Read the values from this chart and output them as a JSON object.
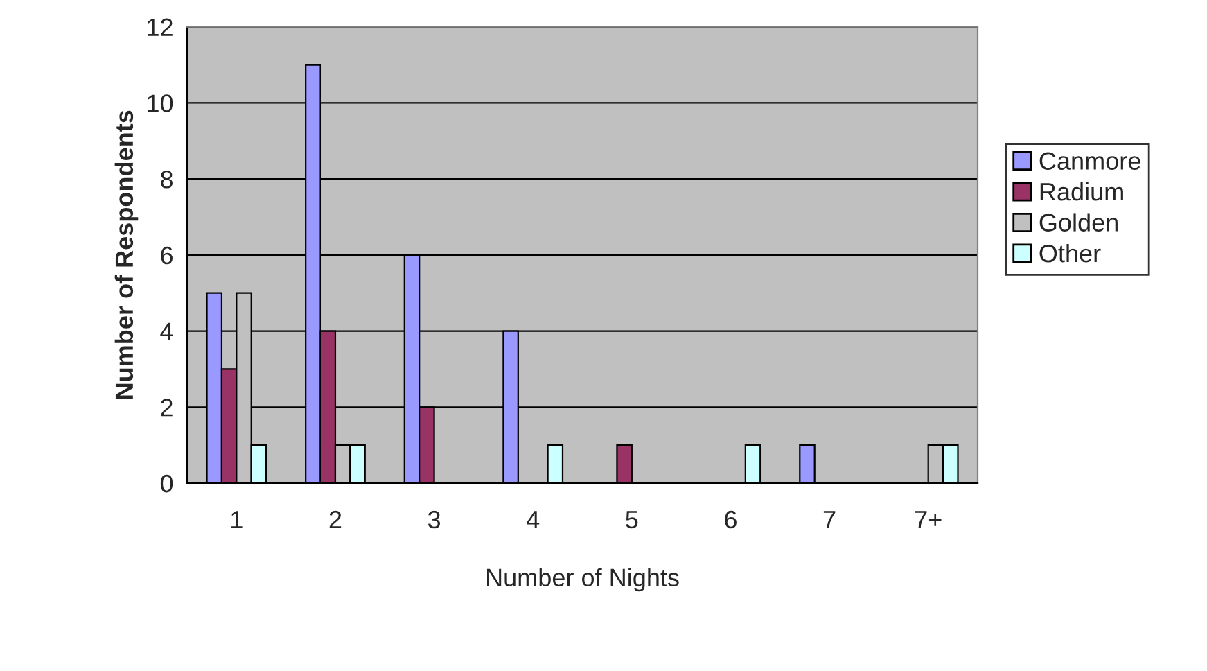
{
  "chart_data": {
    "type": "bar",
    "xlabel": "Number of Nights",
    "ylabel": "Number of Respondents",
    "categories": [
      "1",
      "2",
      "3",
      "4",
      "5",
      "6",
      "7",
      "7+"
    ],
    "series": [
      {
        "name": "Canmore",
        "color": "#9999ff",
        "values": [
          5,
          11,
          6,
          4,
          0,
          0,
          1,
          0
        ]
      },
      {
        "name": "Radium",
        "color": "#993366",
        "values": [
          3,
          4,
          2,
          0,
          1,
          0,
          0,
          0
        ]
      },
      {
        "name": "Golden",
        "color": "#c0c0c0",
        "values": [
          5,
          1,
          0,
          0,
          0,
          0,
          0,
          1
        ]
      },
      {
        "name": "Other",
        "color": "#ccffff",
        "values": [
          1,
          1,
          0,
          1,
          0,
          1,
          0,
          1
        ]
      }
    ],
    "ylim": [
      0,
      12
    ],
    "yticks": [
      0,
      2,
      4,
      6,
      8,
      10,
      12
    ],
    "grid": "y",
    "legend": "right"
  }
}
